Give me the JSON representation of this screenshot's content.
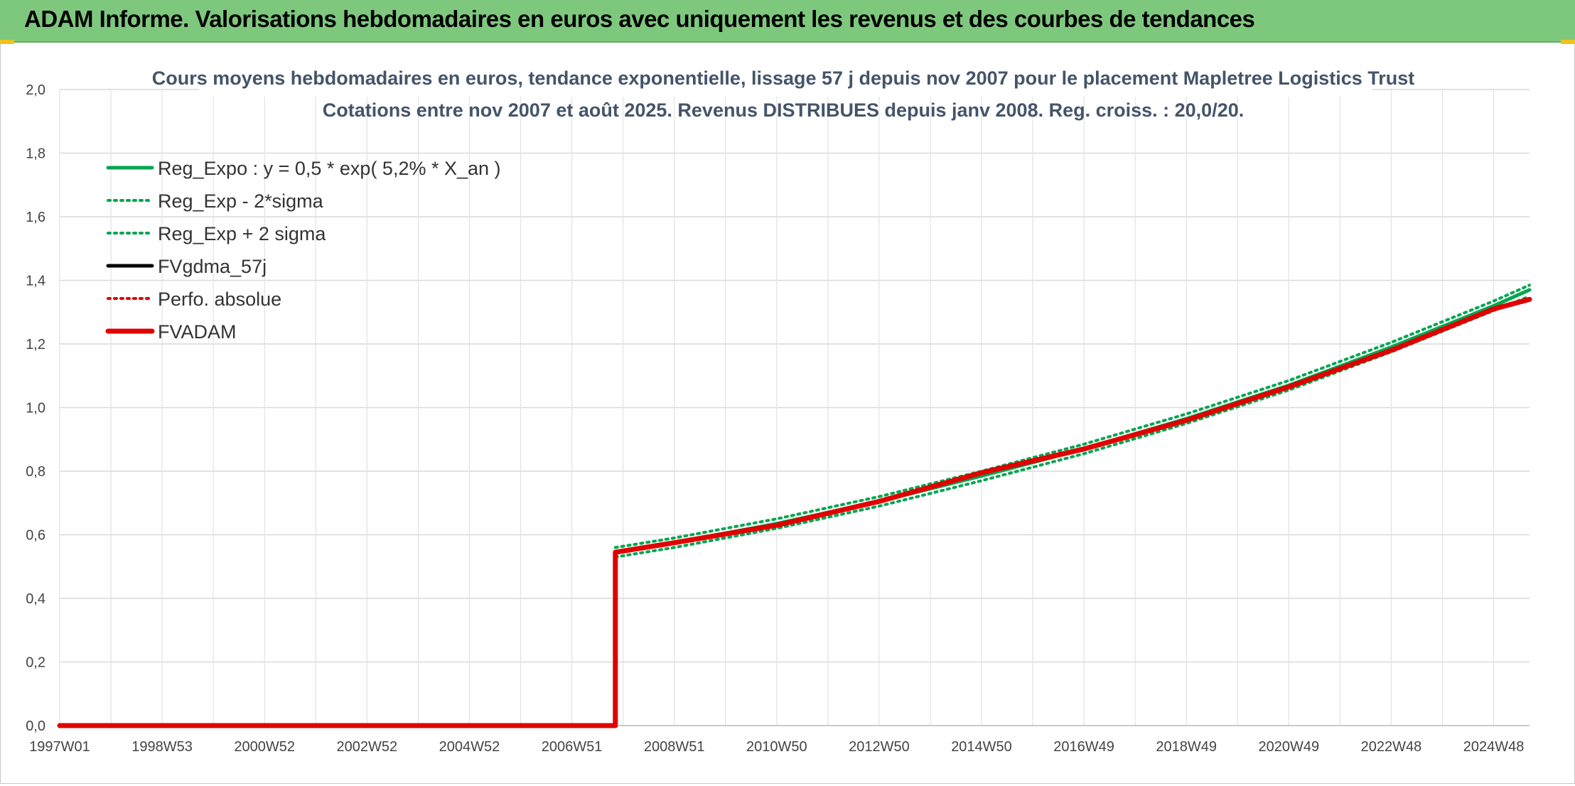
{
  "header": {
    "title": "ADAM Informe. Valorisations hebdomadaires en euros avec uniquement les revenus et des courbes de tendances"
  },
  "chart_data": {
    "type": "line",
    "title": "Cours moyens hebdomadaires en euros, tendance exponentielle, lissage 57 j depuis nov 2007 pour le placement Mapletree Logistics Trust",
    "subtitle": "Cotations entre nov 2007 et août 2025. Revenus DISTRIBUES depuis janv 2008. Reg. croiss. : 20,0/20.",
    "xlabel": "",
    "ylabel": "",
    "ylim": [
      0,
      2.0
    ],
    "yticks": [
      "0,0",
      "0,2",
      "0,4",
      "0,6",
      "0,8",
      "1,0",
      "1,2",
      "1,4",
      "1,6",
      "1,8",
      "2,0"
    ],
    "x_range": [
      1997.0,
      2025.7
    ],
    "xticks": [
      {
        "label": "1997W01",
        "x": 1997.0
      },
      {
        "label": "1998W53",
        "x": 1999.0
      },
      {
        "label": "2000W52",
        "x": 2001.0
      },
      {
        "label": "2002W52",
        "x": 2003.0
      },
      {
        "label": "2004W52",
        "x": 2005.0
      },
      {
        "label": "2006W51",
        "x": 2007.0
      },
      {
        "label": "2008W51",
        "x": 2009.0
      },
      {
        "label": "2010W50",
        "x": 2011.0
      },
      {
        "label": "2012W50",
        "x": 2013.0
      },
      {
        "label": "2014W50",
        "x": 2015.0
      },
      {
        "label": "2016W49",
        "x": 2017.0
      },
      {
        "label": "2018W49",
        "x": 2019.0
      },
      {
        "label": "2020W49",
        "x": 2021.0
      },
      {
        "label": "2022W48",
        "x": 2023.0
      },
      {
        "label": "2024W48",
        "x": 2025.0
      }
    ],
    "grid": true,
    "legend_position": "top-left",
    "series": [
      {
        "name": "Reg_Expo : y = 0,5 * exp( 5,2% *  X_an )",
        "color": "#00a651",
        "style": "solid",
        "points": [
          [
            2007.85,
            0.545
          ],
          [
            2009,
            0.575
          ],
          [
            2011,
            0.635
          ],
          [
            2013,
            0.705
          ],
          [
            2015,
            0.785
          ],
          [
            2017,
            0.87
          ],
          [
            2019,
            0.965
          ],
          [
            2021,
            1.07
          ],
          [
            2023,
            1.19
          ],
          [
            2025,
            1.32
          ],
          [
            2025.7,
            1.37
          ]
        ]
      },
      {
        "name": "Reg_Exp - 2*sigma",
        "color": "#00a651",
        "style": "dotted",
        "points": [
          [
            2007.85,
            0.53
          ],
          [
            2009,
            0.56
          ],
          [
            2011,
            0.62
          ],
          [
            2013,
            0.69
          ],
          [
            2015,
            0.77
          ],
          [
            2017,
            0.855
          ],
          [
            2019,
            0.95
          ],
          [
            2021,
            1.055
          ],
          [
            2023,
            1.175
          ],
          [
            2025,
            1.305
          ],
          [
            2025.7,
            1.35
          ]
        ]
      },
      {
        "name": "Reg_Exp + 2 sigma",
        "color": "#00a651",
        "style": "dotted",
        "points": [
          [
            2007.85,
            0.56
          ],
          [
            2009,
            0.59
          ],
          [
            2011,
            0.65
          ],
          [
            2013,
            0.72
          ],
          [
            2015,
            0.8
          ],
          [
            2017,
            0.885
          ],
          [
            2019,
            0.98
          ],
          [
            2021,
            1.085
          ],
          [
            2023,
            1.205
          ],
          [
            2025,
            1.335
          ],
          [
            2025.7,
            1.385
          ]
        ]
      },
      {
        "name": "FVgdma_57j",
        "color": "#000000",
        "style": "solid",
        "points": [
          [
            2007.85,
            0.545
          ],
          [
            2009,
            0.575
          ],
          [
            2011,
            0.63
          ],
          [
            2013,
            0.705
          ],
          [
            2015,
            0.795
          ],
          [
            2017,
            0.87
          ],
          [
            2019,
            0.96
          ],
          [
            2021,
            1.065
          ],
          [
            2023,
            1.18
          ],
          [
            2025,
            1.31
          ],
          [
            2025.7,
            1.34
          ]
        ]
      },
      {
        "name": "Perfo. absolue",
        "color": "#e00000",
        "style": "dotted",
        "points": [
          [
            2007.85,
            0.545
          ],
          [
            2009,
            0.575
          ],
          [
            2011,
            0.63
          ],
          [
            2013,
            0.705
          ],
          [
            2015,
            0.795
          ],
          [
            2017,
            0.87
          ],
          [
            2019,
            0.96
          ],
          [
            2021,
            1.065
          ],
          [
            2023,
            1.18
          ],
          [
            2025,
            1.31
          ],
          [
            2025.7,
            1.34
          ]
        ]
      },
      {
        "name": "FVADAM",
        "color": "#e00000",
        "style": "thick",
        "points": [
          [
            1997.0,
            0.0
          ],
          [
            2007.85,
            0.0
          ],
          [
            2007.85,
            0.545
          ],
          [
            2009,
            0.575
          ],
          [
            2011,
            0.63
          ],
          [
            2013,
            0.705
          ],
          [
            2015,
            0.795
          ],
          [
            2017,
            0.87
          ],
          [
            2019,
            0.96
          ],
          [
            2021,
            1.065
          ],
          [
            2023,
            1.18
          ],
          [
            2025,
            1.31
          ],
          [
            2025.7,
            1.34
          ]
        ]
      }
    ]
  }
}
